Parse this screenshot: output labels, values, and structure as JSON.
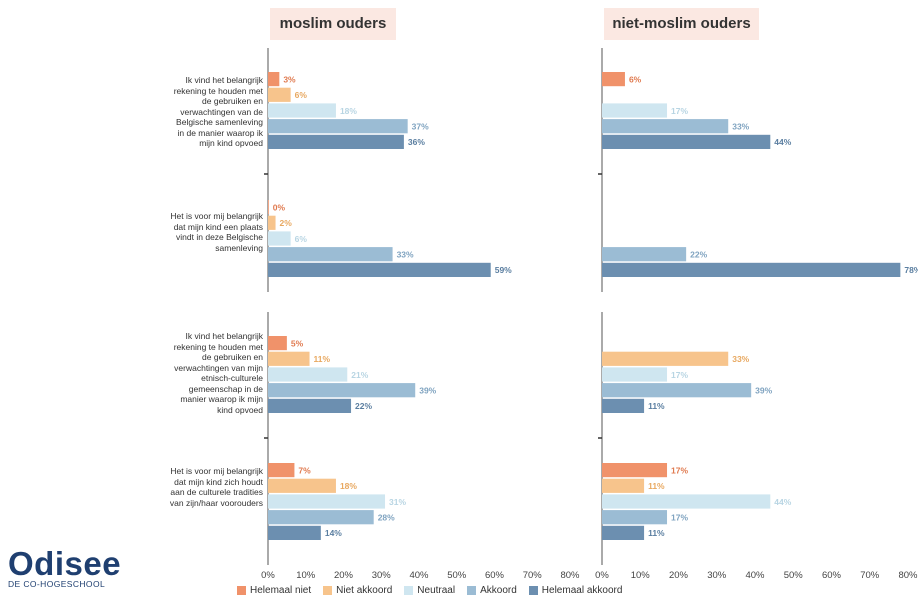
{
  "panels": [
    {
      "title": "moslim ouders"
    },
    {
      "title": "niet-moslim ouders"
    }
  ],
  "questions": [
    "Ik vind het belangrijk rekening te houden met de gebruiken en verwachtingen van de Belgische samenleving in de manier waarop ik mijn kind opvoed",
    "Het is voor mij belangrijk dat mijn kind een plaats vindt in deze Belgische samenleving",
    "Ik vind het belangrijk rekening te houden met de gebruiken en verwachtingen van mijn etnisch-culturele gemeenschap in de manier waarop ik mijn kind opvoed",
    "Het is voor mij belangrijk dat mijn kind zich houdt aan de culturele tradities van zijn/haar voorouders"
  ],
  "legend": [
    {
      "label": "Helemaal niet",
      "color": "#f0926a"
    },
    {
      "label": "Niet akkoord",
      "color": "#f7c48c"
    },
    {
      "label": "Neutraal",
      "color": "#cfe6f0"
    },
    {
      "label": "Akkoord",
      "color": "#9bbcd4"
    },
    {
      "label": "Helemaal akkoord",
      "color": "#6c8fb0"
    }
  ],
  "logo": {
    "name": "Odisee",
    "subtitle": "DE CO-HOGESCHOOL"
  },
  "chart_data": [
    {
      "type": "bar",
      "title": "moslim ouders",
      "orientation": "horizontal",
      "categories": [
        "Ik vind het belangrijk rekening te houden met de gebruiken en verwachtingen van de Belgische samenleving in de manier waarop ik mijn kind opvoed",
        "Het is voor mij belangrijk dat mijn kind een plaats vindt in deze Belgische samenleving",
        "Ik vind het belangrijk rekening te houden met de gebruiken en verwachtingen van mijn etnisch-culturele gemeenschap in de manier waarop ik mijn kind opvoed",
        "Het is voor mij belangrijk dat mijn kind zich houdt aan de culturele tradities van zijn/haar voorouders"
      ],
      "series": [
        {
          "name": "Helemaal niet",
          "values": [
            3,
            0,
            5,
            7
          ]
        },
        {
          "name": "Niet akkoord",
          "values": [
            6,
            2,
            11,
            18
          ]
        },
        {
          "name": "Neutraal",
          "values": [
            18,
            6,
            21,
            31
          ]
        },
        {
          "name": "Akkoord",
          "values": [
            37,
            33,
            39,
            28
          ]
        },
        {
          "name": "Helemaal akkoord",
          "values": [
            36,
            59,
            22,
            14
          ]
        }
      ],
      "xlim": [
        0,
        80
      ],
      "xticks": [
        "0%",
        "10%",
        "20%",
        "30%",
        "40%",
        "50%",
        "60%",
        "70%",
        "80%"
      ]
    },
    {
      "type": "bar",
      "title": "niet-moslim ouders",
      "orientation": "horizontal",
      "categories": [
        "Ik vind het belangrijk rekening te houden met de gebruiken en verwachtingen van de Belgische samenleving in de manier waarop ik mijn kind opvoed",
        "Het is voor mij belangrijk dat mijn kind een plaats vindt in deze Belgische samenleving",
        "Ik vind het belangrijk rekening te houden met de gebruiken en verwachtingen van mijn etnisch-culturele gemeenschap in de manier waarop ik mijn kind opvoed",
        "Het is voor mij belangrijk dat mijn kind zich houdt aan de culturele tradities van zijn/haar voorouders"
      ],
      "series": [
        {
          "name": "Helemaal niet",
          "values": [
            6,
            null,
            null,
            17
          ]
        },
        {
          "name": "Niet akkoord",
          "values": [
            null,
            null,
            33,
            11
          ]
        },
        {
          "name": "Neutraal",
          "values": [
            17,
            null,
            17,
            44
          ]
        },
        {
          "name": "Akkoord",
          "values": [
            33,
            22,
            39,
            17
          ]
        },
        {
          "name": "Helemaal akkoord",
          "values": [
            44,
            78,
            11,
            11
          ]
        }
      ],
      "xlim": [
        0,
        80
      ],
      "xticks": [
        "0%",
        "10%",
        "20%",
        "30%",
        "40%",
        "50%",
        "60%",
        "70%",
        "80%"
      ]
    }
  ]
}
